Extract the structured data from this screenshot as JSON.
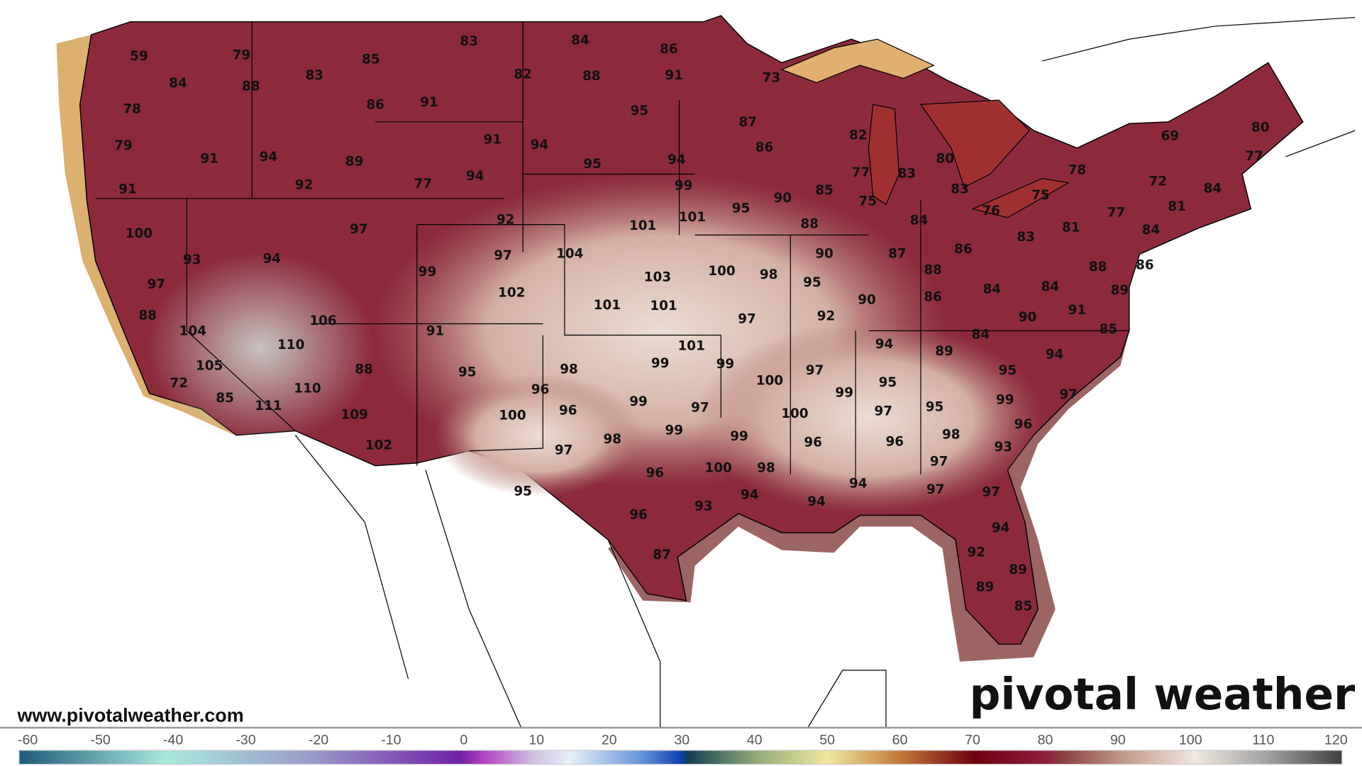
{
  "site_url": "www.pivotalweather.com",
  "logo_text": "pivotal weather",
  "colorbar": {
    "ticks": [
      "-60",
      "-50",
      "-40",
      "-30",
      "-20",
      "-10",
      "0",
      "10",
      "20",
      "30",
      "40",
      "50",
      "60",
      "70",
      "80",
      "90",
      "100",
      "110",
      "120"
    ],
    "range": [
      -60,
      120
    ],
    "stops": [
      [
        -60,
        "#1e5a7a"
      ],
      [
        -40,
        "#a8e8dc"
      ],
      [
        -20,
        "#9a9ac8"
      ],
      [
        0,
        "#7020a8"
      ],
      [
        3,
        "#b040c0"
      ],
      [
        10,
        "#d0c0e0"
      ],
      [
        15,
        "#e8f0f8"
      ],
      [
        25,
        "#6090d8"
      ],
      [
        30,
        "#1040b0"
      ],
      [
        31,
        "#104050"
      ],
      [
        40,
        "#90a878"
      ],
      [
        50,
        "#f0e8a0"
      ],
      [
        60,
        "#c07838"
      ],
      [
        70,
        "#700010"
      ],
      [
        80,
        "#902040"
      ],
      [
        82,
        "#8a4040"
      ],
      [
        90,
        "#c09888"
      ],
      [
        100,
        "#f0e8e0"
      ],
      [
        110,
        "#a0a0a0"
      ],
      [
        120,
        "#404040"
      ]
    ]
  },
  "colors": {
    "land_warm": "#8c2a3c",
    "land_hot": "#d8bcb0",
    "coast_water": "#8a4a48",
    "border": "#000000"
  },
  "temperatures": [
    "59",
    "79",
    "83",
    "84",
    "86",
    "85",
    "83",
    "82",
    "88",
    "91",
    "84",
    "88",
    "78",
    "86",
    "91",
    "95",
    "73",
    "87",
    "79",
    "91",
    "94",
    "89",
    "91",
    "94",
    "95",
    "94",
    "86",
    "82",
    "80",
    "69",
    "80",
    "77",
    "78",
    "91",
    "92",
    "77",
    "94",
    "99",
    "85",
    "77",
    "83",
    "83",
    "72",
    "84",
    "75",
    "75",
    "76",
    "77",
    "81",
    "100",
    "97",
    "92",
    "101",
    "101",
    "95",
    "90",
    "88",
    "84",
    "83",
    "81",
    "84",
    "93",
    "94",
    "97",
    "104",
    "90",
    "87",
    "86",
    "86",
    "88",
    "97",
    "99",
    "102",
    "103",
    "100",
    "98",
    "95",
    "88",
    "84",
    "84",
    "89",
    "88",
    "101",
    "101",
    "97",
    "92",
    "90",
    "86",
    "91",
    "90",
    "85",
    "104",
    "106",
    "91",
    "110",
    "101",
    "94",
    "84",
    "89",
    "94",
    "105",
    "88",
    "95",
    "98",
    "99",
    "99",
    "100",
    "97",
    "95",
    "95",
    "72",
    "85",
    "110",
    "96",
    "99",
    "99",
    "97",
    "111",
    "109",
    "100",
    "96",
    "99",
    "97",
    "100",
    "97",
    "95",
    "96",
    "98",
    "102",
    "97",
    "98",
    "99",
    "99",
    "96",
    "96",
    "93",
    "97",
    "96",
    "100",
    "98",
    "94",
    "97",
    "97",
    "95",
    "93",
    "94",
    "94",
    "96",
    "94",
    "87",
    "92",
    "89",
    "89",
    "85"
  ]
}
